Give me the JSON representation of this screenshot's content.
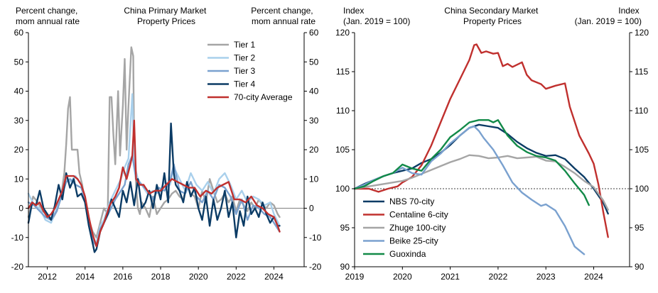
{
  "chart_data": [
    {
      "type": "line",
      "title": "China Primary Market\nProperty Prices",
      "ylabel_left": "Percent change,\nmom annual rate",
      "ylabel_right": "Percent change,\nmom annual rate",
      "xlim": [
        2011,
        2025.6
      ],
      "ylim": [
        -20,
        60
      ],
      "xticks": [
        2012,
        2014,
        2016,
        2018,
        2020,
        2022,
        2024
      ],
      "yticks": [
        -20,
        -10,
        0,
        10,
        20,
        30,
        40,
        50,
        60
      ],
      "legend_position": "top-right",
      "series": [
        {
          "name": "Tier 1",
          "color": "#a5a5a5",
          "x": [
            2011.0,
            2011.25,
            2011.5,
            2011.75,
            2012.0,
            2012.25,
            2012.5,
            2012.75,
            2012.9,
            2013.0,
            2013.1,
            2013.2,
            2013.3,
            2013.4,
            2013.6,
            2013.7,
            2013.85,
            2014.0,
            2014.2,
            2014.4,
            2014.6,
            2014.8,
            2015.0,
            2015.2,
            2015.3,
            2015.4,
            2015.5,
            2015.6,
            2015.75,
            2015.85,
            2016.0,
            2016.1,
            2016.2,
            2016.3,
            2016.45,
            2016.55,
            2016.6,
            2016.7,
            2016.8,
            2016.9,
            2017.0,
            2017.2,
            2017.4,
            2017.6,
            2017.8,
            2018.0,
            2018.2,
            2018.4,
            2018.6,
            2018.8,
            2019.0,
            2019.2,
            2019.4,
            2019.6,
            2019.8,
            2020.0,
            2020.2,
            2020.4,
            2020.6,
            2020.8,
            2021.0,
            2021.2,
            2021.4,
            2021.6,
            2021.8,
            2022.0,
            2022.2,
            2022.4,
            2022.6,
            2022.8,
            2023.0,
            2023.2,
            2023.4,
            2023.6,
            2023.8,
            2024.0,
            2024.2,
            2024.3
          ],
          "values": [
            -3,
            4,
            2,
            -1,
            -2,
            -4,
            -1,
            5,
            12,
            22,
            34,
            38,
            20,
            20,
            20,
            12,
            8,
            2,
            -4,
            -8,
            -10,
            -5,
            0,
            -2,
            38,
            38,
            25,
            15,
            40,
            18,
            35,
            51,
            20,
            35,
            55,
            52,
            20,
            8,
            0,
            -2,
            2,
            0,
            -3,
            4,
            -2,
            0,
            2,
            3,
            5,
            6,
            4,
            3,
            8,
            5,
            4,
            0,
            6,
            2,
            10,
            6,
            2,
            3,
            5,
            2,
            4,
            -1,
            3,
            1,
            -1,
            2,
            0,
            3,
            1,
            0,
            2,
            1,
            -2,
            -3
          ]
        },
        {
          "name": "Tier 2",
          "color": "#a9d0ec",
          "x": [
            2011.0,
            2011.3,
            2011.6,
            2011.9,
            2012.2,
            2012.5,
            2012.8,
            2013.0,
            2013.2,
            2013.5,
            2013.8,
            2014.0,
            2014.2,
            2014.4,
            2014.6,
            2014.8,
            2015.0,
            2015.3,
            2015.6,
            2015.9,
            2016.1,
            2016.3,
            2016.5,
            2016.6,
            2016.8,
            2017.0,
            2017.3,
            2017.6,
            2017.9,
            2018.2,
            2018.5,
            2018.7,
            2019.0,
            2019.3,
            2019.6,
            2019.9,
            2020.2,
            2020.5,
            2020.8,
            2021.1,
            2021.4,
            2021.7,
            2022.0,
            2022.3,
            2022.6,
            2022.9,
            2023.2,
            2023.5,
            2023.8,
            2024.0,
            2024.3
          ],
          "values": [
            5,
            1,
            0,
            -4,
            -5,
            0,
            6,
            10,
            9,
            11,
            8,
            4,
            -4,
            -10,
            -12,
            -6,
            -4,
            2,
            6,
            10,
            14,
            17,
            39,
            15,
            10,
            8,
            5,
            6,
            5,
            9,
            8,
            14,
            10,
            6,
            12,
            8,
            6,
            9,
            5,
            10,
            12,
            8,
            3,
            6,
            2,
            4,
            3,
            1,
            2,
            -2,
            -6
          ]
        },
        {
          "name": "Tier 3",
          "color": "#7aa1cf",
          "x": [
            2011.0,
            2011.3,
            2011.6,
            2011.9,
            2012.2,
            2012.5,
            2012.8,
            2013.0,
            2013.2,
            2013.5,
            2013.8,
            2014.0,
            2014.2,
            2014.4,
            2014.6,
            2014.8,
            2015.0,
            2015.3,
            2015.6,
            2015.9,
            2016.1,
            2016.3,
            2016.5,
            2016.7,
            2017.0,
            2017.3,
            2017.6,
            2017.9,
            2018.2,
            2018.5,
            2018.7,
            2019.0,
            2019.3,
            2019.6,
            2019.9,
            2020.2,
            2020.5,
            2020.8,
            2021.1,
            2021.4,
            2021.7,
            2022.0,
            2022.3,
            2022.6,
            2022.9,
            2023.2,
            2023.5,
            2023.8,
            2024.0,
            2024.3
          ],
          "values": [
            2,
            1,
            -1,
            -3,
            -4,
            -1,
            5,
            9,
            10,
            8,
            7,
            3,
            -5,
            -11,
            -13,
            -7,
            -5,
            -1,
            3,
            6,
            8,
            15,
            18,
            10,
            8,
            6,
            3,
            7,
            6,
            9,
            15,
            6,
            5,
            9,
            4,
            2,
            6,
            3,
            8,
            7,
            4,
            -2,
            3,
            -4,
            1,
            0,
            -2,
            -3,
            -5,
            -8
          ]
        },
        {
          "name": "Tier 4",
          "color": "#0b3b65",
          "x": [
            2011.0,
            2011.2,
            2011.4,
            2011.6,
            2011.8,
            2012.0,
            2012.2,
            2012.4,
            2012.6,
            2012.8,
            2013.0,
            2013.2,
            2013.4,
            2013.6,
            2013.8,
            2014.0,
            2014.2,
            2014.4,
            2014.5,
            2014.6,
            2014.8,
            2015.0,
            2015.2,
            2015.4,
            2015.6,
            2015.8,
            2016.0,
            2016.2,
            2016.4,
            2016.6,
            2016.8,
            2017.0,
            2017.2,
            2017.4,
            2017.6,
            2017.8,
            2018.0,
            2018.2,
            2018.4,
            2018.55,
            2018.7,
            2018.8,
            2019.0,
            2019.2,
            2019.4,
            2019.6,
            2019.8,
            2020.0,
            2020.2,
            2020.4,
            2020.6,
            2020.8,
            2021.0,
            2021.2,
            2021.4,
            2021.6,
            2021.8,
            2022.0,
            2022.2,
            2022.4,
            2022.6,
            2022.8,
            2023.0,
            2023.2,
            2023.4,
            2023.6,
            2023.8,
            2024.0,
            2024.2,
            2024.3
          ],
          "values": [
            -5,
            2,
            1,
            6,
            0,
            -2,
            -4,
            1,
            8,
            3,
            12,
            7,
            10,
            4,
            5,
            2,
            -6,
            -12,
            -15,
            -14,
            -8,
            -5,
            -2,
            3,
            0,
            -3,
            6,
            2,
            9,
            1,
            10,
            0,
            2,
            6,
            0,
            8,
            3,
            12,
            2,
            29,
            12,
            8,
            6,
            2,
            9,
            4,
            7,
            0,
            -4,
            4,
            -6,
            3,
            -4,
            0,
            6,
            -3,
            2,
            -10,
            -1,
            -6,
            4,
            -2,
            0,
            -3,
            2,
            -2,
            -5,
            -3,
            -6,
            -6
          ]
        },
        {
          "name": "70-city Average",
          "color": "#c0302e",
          "x": [
            2011.0,
            2011.2,
            2011.4,
            2011.6,
            2011.8,
            2012.0,
            2012.2,
            2012.4,
            2012.6,
            2012.8,
            2013.0,
            2013.2,
            2013.4,
            2013.6,
            2013.8,
            2014.0,
            2014.2,
            2014.4,
            2014.6,
            2014.8,
            2015.0,
            2015.3,
            2015.6,
            2015.8,
            2016.0,
            2016.2,
            2016.4,
            2016.5,
            2016.6,
            2016.7,
            2016.9,
            2017.1,
            2017.4,
            2017.7,
            2018.0,
            2018.3,
            2018.6,
            2018.9,
            2019.2,
            2019.5,
            2019.8,
            2020.1,
            2020.4,
            2020.7,
            2021.0,
            2021.3,
            2021.6,
            2021.9,
            2022.2,
            2022.5,
            2022.8,
            2023.1,
            2023.4,
            2023.7,
            2024.0,
            2024.2,
            2024.3
          ],
          "values": [
            0,
            2,
            1,
            2,
            -1,
            -3,
            -2,
            0,
            3,
            6,
            11,
            11,
            11,
            10,
            8,
            4,
            -3,
            -9,
            -13,
            -8,
            -5,
            1,
            4,
            7,
            14,
            10,
            15,
            18,
            30,
            10,
            8,
            8,
            5,
            6,
            6,
            8,
            10,
            9,
            8,
            7,
            7,
            4,
            6,
            5,
            7,
            8,
            9,
            3,
            3,
            2,
            4,
            1,
            0,
            -2,
            -3,
            -6,
            -8
          ]
        }
      ]
    },
    {
      "type": "line",
      "title": "China Secondary Market\nProperty Prices",
      "ylabel_left": "Index\n(Jan. 2019 = 100)",
      "ylabel_right": "Index\n(Jan. 2019 = 100)",
      "xlim": [
        2019,
        2024.75
      ],
      "ylim": [
        90,
        120
      ],
      "xticks": [
        2019,
        2020,
        2021,
        2022,
        2023,
        2024
      ],
      "yticks": [
        90,
        95,
        100,
        105,
        110,
        115,
        120
      ],
      "reference_line": 100,
      "legend_position": "bottom-left",
      "series": [
        {
          "name": "NBS 70-city",
          "color": "#0b3b65",
          "x": [
            2019.0,
            2019.2,
            2019.4,
            2019.6,
            2019.8,
            2020.0,
            2020.2,
            2020.4,
            2020.6,
            2020.8,
            2021.0,
            2021.2,
            2021.4,
            2021.6,
            2021.8,
            2022.0,
            2022.2,
            2022.4,
            2022.6,
            2022.8,
            2023.0,
            2023.2,
            2023.4,
            2023.6,
            2023.8,
            2024.0,
            2024.2,
            2024.3
          ],
          "values": [
            100,
            100.6,
            101.1,
            101.6,
            102.0,
            102.3,
            102.6,
            103.3,
            103.8,
            104.6,
            105.6,
            106.8,
            107.8,
            108.2,
            108.0,
            107.8,
            107.0,
            106.0,
            105.2,
            104.6,
            104.2,
            104.3,
            103.8,
            102.6,
            101.5,
            100.0,
            98.2,
            96.8
          ]
        },
        {
          "name": "Centaline 6-city",
          "color": "#c0302e",
          "x": [
            2019.0,
            2019.3,
            2019.5,
            2019.7,
            2019.9,
            2020.0,
            2020.2,
            2020.4,
            2020.6,
            2020.8,
            2021.0,
            2021.2,
            2021.4,
            2021.5,
            2021.55,
            2021.65,
            2021.75,
            2021.9,
            2022.0,
            2022.1,
            2022.2,
            2022.3,
            2022.5,
            2022.6,
            2022.7,
            2022.9,
            2023.0,
            2023.2,
            2023.4,
            2023.5,
            2023.7,
            2023.9,
            2024.0,
            2024.1,
            2024.2,
            2024.3
          ],
          "values": [
            100,
            100.0,
            99.6,
            100.0,
            100.3,
            100.8,
            101.5,
            103.0,
            105.5,
            108.5,
            111.5,
            114.0,
            116.5,
            118.4,
            118.5,
            117.4,
            117.6,
            117.3,
            117.4,
            115.7,
            116.0,
            115.6,
            116.2,
            114.6,
            113.9,
            113.4,
            112.8,
            113.2,
            113.5,
            110.5,
            106.8,
            104.5,
            103.2,
            100.5,
            97.0,
            93.8
          ]
        },
        {
          "name": "Zhuge 100-city",
          "color": "#a5a5a5",
          "x": [
            2019.0,
            2019.3,
            2019.6,
            2019.9,
            2020.0,
            2020.2,
            2020.4,
            2020.6,
            2020.8,
            2021.0,
            2021.2,
            2021.4,
            2021.6,
            2021.8,
            2022.0,
            2022.2,
            2022.4,
            2022.6,
            2022.8,
            2023.0,
            2023.2,
            2023.4,
            2023.6,
            2023.8,
            2024.0,
            2024.2,
            2024.3
          ],
          "values": [
            100,
            100.3,
            100.6,
            100.9,
            101.0,
            101.4,
            101.9,
            102.4,
            102.9,
            103.4,
            103.8,
            104.3,
            104.2,
            103.9,
            104.0,
            104.2,
            103.9,
            104.0,
            104.1,
            103.6,
            103.5,
            102.8,
            102.0,
            101.0,
            100.2,
            98.5,
            97.3
          ]
        },
        {
          "name": "Beike 25-city",
          "color": "#7aa1cf",
          "x": [
            2019.0,
            2019.2,
            2019.4,
            2019.6,
            2019.8,
            2020.0,
            2020.2,
            2020.4,
            2020.6,
            2020.8,
            2021.0,
            2021.2,
            2021.4,
            2021.5,
            2021.6,
            2021.7,
            2021.9,
            2022.1,
            2022.3,
            2022.5,
            2022.7,
            2022.9,
            2023.0,
            2023.2,
            2023.4,
            2023.6,
            2023.8
          ],
          "values": [
            100,
            100.5,
            101.1,
            101.6,
            102.0,
            102.7,
            102.0,
            101.8,
            103.5,
            104.5,
            105.8,
            106.8,
            107.8,
            108.0,
            107.4,
            106.5,
            105.0,
            103.0,
            100.8,
            99.5,
            98.6,
            97.8,
            98.0,
            97.2,
            95.2,
            92.6,
            91.6
          ]
        },
        {
          "name": "Guoxinda",
          "color": "#128a48",
          "x": [
            2019.0,
            2019.2,
            2019.4,
            2019.6,
            2019.8,
            2020.0,
            2020.2,
            2020.4,
            2020.6,
            2020.8,
            2021.0,
            2021.2,
            2021.4,
            2021.6,
            2021.8,
            2021.9,
            2022.0,
            2022.2,
            2022.4,
            2022.6,
            2022.8,
            2023.0,
            2023.2,
            2023.4,
            2023.6,
            2023.8,
            2023.9
          ],
          "values": [
            100,
            100.3,
            101.0,
            101.6,
            102.0,
            103.1,
            102.6,
            102.3,
            103.8,
            105.0,
            106.6,
            107.5,
            108.5,
            108.8,
            108.8,
            108.5,
            108.8,
            106.8,
            105.5,
            104.7,
            104.2,
            104.0,
            103.6,
            102.3,
            100.7,
            99.2,
            97.9
          ]
        }
      ]
    }
  ]
}
